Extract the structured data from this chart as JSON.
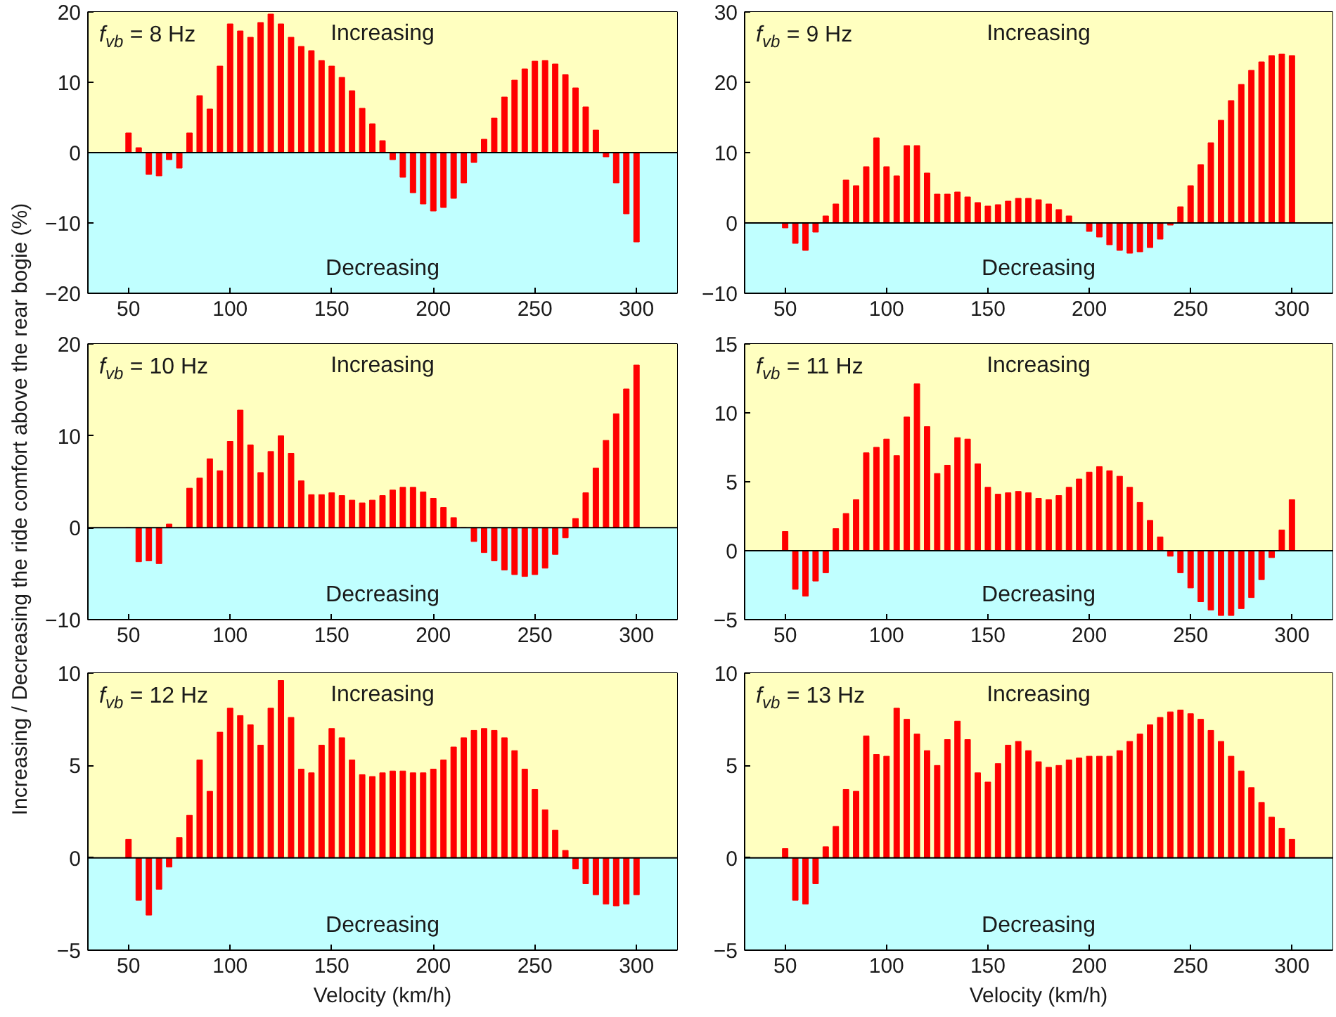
{
  "chart_data": [
    {
      "type": "bar",
      "x": [
        50,
        55,
        60,
        65,
        70,
        75,
        80,
        85,
        90,
        95,
        100,
        105,
        110,
        115,
        120,
        125,
        130,
        135,
        140,
        145,
        150,
        155,
        160,
        165,
        170,
        175,
        180,
        185,
        190,
        195,
        200,
        205,
        210,
        215,
        220,
        225,
        230,
        235,
        240,
        245,
        250,
        255,
        260,
        265,
        270,
        275,
        280,
        285,
        290,
        295,
        300
      ],
      "values": [
        2.8,
        0.7,
        -3.1,
        -3.3,
        -1.0,
        -2.2,
        2.8,
        8.1,
        6.2,
        12.3,
        18.3,
        17.3,
        16.4,
        18.5,
        19.7,
        18.3,
        16.4,
        15.1,
        14.5,
        13.1,
        12.3,
        10.7,
        8.8,
        6.3,
        4.1,
        1.7,
        -1.0,
        -3.5,
        -5.7,
        -7.3,
        -8.3,
        -7.8,
        -6.5,
        -4.3,
        -1.4,
        1.9,
        4.9,
        7.9,
        10.3,
        11.9,
        13.0,
        13.1,
        12.6,
        11.1,
        9.2,
        6.5,
        3.2,
        -0.6,
        -4.3,
        -8.7,
        -12.7
      ],
      "color": "#ff0000",
      "xlim": [
        30,
        320
      ],
      "xticks": [
        50,
        100,
        150,
        200,
        250,
        300
      ],
      "ylim": [
        -20,
        20
      ],
      "yticks": [
        -20,
        -10,
        0,
        10,
        20
      ],
      "bands": [
        {
          "axis": "y",
          "from": 0,
          "to": 20,
          "label": "Increasing",
          "color": "#ffffc0"
        },
        {
          "axis": "y",
          "from": -20,
          "to": 0,
          "label": "Decreasing",
          "color": "#c0ffff"
        }
      ],
      "annotations": [
        "f$_{vb}$ = 8 Hz"
      ]
    },
    {
      "type": "bar",
      "x": [
        50,
        55,
        60,
        65,
        70,
        75,
        80,
        85,
        90,
        95,
        100,
        105,
        110,
        115,
        120,
        125,
        130,
        135,
        140,
        145,
        150,
        155,
        160,
        165,
        170,
        175,
        180,
        185,
        190,
        195,
        200,
        205,
        210,
        215,
        220,
        225,
        230,
        235,
        240,
        245,
        250,
        255,
        260,
        265,
        270,
        275,
        280,
        285,
        290,
        295,
        300
      ],
      "values": [
        -0.7,
        -2.9,
        -3.9,
        -1.3,
        1.0,
        2.7,
        6.1,
        5.3,
        8.0,
        12.1,
        8.0,
        6.7,
        11.0,
        11.0,
        7.1,
        4.1,
        4.1,
        4.4,
        3.7,
        2.9,
        2.4,
        2.6,
        3.1,
        3.5,
        3.5,
        3.3,
        2.7,
        1.9,
        1.0,
        0,
        -1.2,
        -2.0,
        -3.1,
        -3.9,
        -4.3,
        -4.1,
        -3.5,
        -2.3,
        -0.3,
        2.3,
        5.3,
        8.3,
        11.4,
        14.6,
        17.4,
        19.7,
        21.7,
        22.9,
        23.8,
        24.0,
        23.8
      ],
      "color": "#ff0000",
      "xlim": [
        30,
        320
      ],
      "xticks": [
        50,
        100,
        150,
        200,
        250,
        300
      ],
      "ylim": [
        -10,
        30
      ],
      "yticks": [
        -10,
        0,
        10,
        20,
        30
      ],
      "bands": [
        {
          "axis": "y",
          "from": 0,
          "to": 30,
          "label": "Increasing",
          "color": "#ffffc0"
        },
        {
          "axis": "y",
          "from": -10,
          "to": 0,
          "label": "Decreasing",
          "color": "#c0ffff"
        }
      ],
      "annotations": [
        "f$_{vb}$ = 9 Hz"
      ]
    },
    {
      "type": "bar",
      "x": [
        50,
        55,
        60,
        65,
        70,
        75,
        80,
        85,
        90,
        95,
        100,
        105,
        110,
        115,
        120,
        125,
        130,
        135,
        140,
        145,
        150,
        155,
        160,
        165,
        170,
        175,
        180,
        185,
        190,
        195,
        200,
        205,
        210,
        215,
        220,
        225,
        230,
        235,
        240,
        245,
        250,
        255,
        260,
        265,
        270,
        275,
        280,
        285,
        290,
        295,
        300
      ],
      "values": [
        0,
        -3.7,
        -3.6,
        -3.9,
        0.4,
        0,
        4.3,
        5.4,
        7.5,
        6.2,
        9.4,
        12.8,
        9.0,
        6.0,
        8.3,
        10.0,
        8.1,
        5.1,
        3.6,
        3.6,
        3.8,
        3.5,
        3.0,
        2.7,
        3.0,
        3.5,
        4.1,
        4.4,
        4.4,
        3.9,
        3.2,
        2.2,
        1.1,
        0,
        -1.5,
        -2.7,
        -3.6,
        -4.6,
        -5.1,
        -5.3,
        -5.1,
        -4.4,
        -2.9,
        -1.1,
        1.0,
        3.8,
        6.5,
        9.5,
        12.4,
        15.1,
        17.7
      ],
      "color": "#ff0000",
      "xlim": [
        30,
        320
      ],
      "xticks": [
        50,
        100,
        150,
        200,
        250,
        300
      ],
      "ylim": [
        -10,
        20
      ],
      "yticks": [
        -10,
        0,
        10,
        20
      ],
      "bands": [
        {
          "axis": "y",
          "from": 0,
          "to": 20,
          "label": "Increasing",
          "color": "#ffffc0"
        },
        {
          "axis": "y",
          "from": -10,
          "to": 0,
          "label": "Decreasing",
          "color": "#c0ffff"
        }
      ],
      "annotations": [
        "f$_{vb}$ = 10 Hz"
      ],
      "ylabel": "Increasing / Decreasing the ride comfort above the rear bogie (%)"
    },
    {
      "type": "bar",
      "x": [
        50,
        55,
        60,
        65,
        70,
        75,
        80,
        85,
        90,
        95,
        100,
        105,
        110,
        115,
        120,
        125,
        130,
        135,
        140,
        145,
        150,
        155,
        160,
        165,
        170,
        175,
        180,
        185,
        190,
        195,
        200,
        205,
        210,
        215,
        220,
        225,
        230,
        235,
        240,
        245,
        250,
        255,
        260,
        265,
        270,
        275,
        280,
        285,
        290,
        295,
        300
      ],
      "values": [
        1.4,
        -2.8,
        -3.3,
        -2.2,
        -1.6,
        1.6,
        2.7,
        3.7,
        7.1,
        7.5,
        8.1,
        6.9,
        9.7,
        12.1,
        9.0,
        5.6,
        6.2,
        8.2,
        8.1,
        6.3,
        4.6,
        4.1,
        4.2,
        4.3,
        4.2,
        3.8,
        3.7,
        4.0,
        4.6,
        5.2,
        5.7,
        6.1,
        5.8,
        5.4,
        4.6,
        3.5,
        2.2,
        1.0,
        -0.4,
        -1.6,
        -2.7,
        -3.7,
        -4.3,
        -4.7,
        -4.7,
        -4.2,
        -3.4,
        -2.1,
        -0.5,
        1.5,
        3.7
      ],
      "color": "#ff0000",
      "xlim": [
        30,
        320
      ],
      "xticks": [
        50,
        100,
        150,
        200,
        250,
        300
      ],
      "ylim": [
        -5,
        15
      ],
      "yticks": [
        -5,
        0,
        5,
        10,
        15
      ],
      "bands": [
        {
          "axis": "y",
          "from": 0,
          "to": 15,
          "label": "Increasing",
          "color": "#ffffc0"
        },
        {
          "axis": "y",
          "from": -5,
          "to": 0,
          "label": "Decreasing",
          "color": "#c0ffff"
        }
      ],
      "annotations": [
        "f$_{vb}$ = 11 Hz"
      ]
    },
    {
      "type": "bar",
      "x": [
        50,
        55,
        60,
        65,
        70,
        75,
        80,
        85,
        90,
        95,
        100,
        105,
        110,
        115,
        120,
        125,
        130,
        135,
        140,
        145,
        150,
        155,
        160,
        165,
        170,
        175,
        180,
        185,
        190,
        195,
        200,
        205,
        210,
        215,
        220,
        225,
        230,
        235,
        240,
        245,
        250,
        255,
        260,
        265,
        270,
        275,
        280,
        285,
        290,
        295,
        300
      ],
      "values": [
        1.0,
        -2.3,
        -3.1,
        -1.7,
        -0.5,
        1.1,
        2.3,
        5.3,
        3.6,
        6.8,
        8.1,
        7.7,
        7.2,
        6.1,
        8.1,
        9.6,
        7.6,
        4.8,
        4.6,
        6.1,
        7.0,
        6.5,
        5.3,
        4.5,
        4.4,
        4.6,
        4.7,
        4.7,
        4.6,
        4.6,
        4.8,
        5.3,
        6.0,
        6.5,
        6.9,
        7.0,
        6.9,
        6.5,
        5.8,
        4.8,
        3.7,
        2.6,
        1.5,
        0.4,
        -0.6,
        -1.4,
        -2.0,
        -2.5,
        -2.6,
        -2.5,
        -2.0
      ],
      "color": "#ff0000",
      "xlim": [
        30,
        320
      ],
      "xticks": [
        50,
        100,
        150,
        200,
        250,
        300
      ],
      "ylim": [
        -5,
        10
      ],
      "yticks": [
        -5,
        0,
        5,
        10
      ],
      "bands": [
        {
          "axis": "y",
          "from": 0,
          "to": 10,
          "label": "Increasing",
          "color": "#ffffc0"
        },
        {
          "axis": "y",
          "from": -5,
          "to": 0,
          "label": "Decreasing",
          "color": "#c0ffff"
        }
      ],
      "annotations": [
        "f$_{vb}$ = 12 Hz"
      ],
      "xlabel": "Velocity (km/h)"
    },
    {
      "type": "bar",
      "x": [
        50,
        55,
        60,
        65,
        70,
        75,
        80,
        85,
        90,
        95,
        100,
        105,
        110,
        115,
        120,
        125,
        130,
        135,
        140,
        145,
        150,
        155,
        160,
        165,
        170,
        175,
        180,
        185,
        190,
        195,
        200,
        205,
        210,
        215,
        220,
        225,
        230,
        235,
        240,
        245,
        250,
        255,
        260,
        265,
        270,
        275,
        280,
        285,
        290,
        295,
        300
      ],
      "values": [
        0.5,
        -2.3,
        -2.5,
        -1.4,
        0.6,
        1.7,
        3.7,
        3.6,
        6.6,
        5.6,
        5.5,
        8.1,
        7.5,
        6.7,
        5.8,
        5.0,
        6.4,
        7.4,
        6.4,
        4.6,
        4.1,
        5.1,
        6.1,
        6.3,
        5.8,
        5.2,
        4.9,
        5.0,
        5.3,
        5.4,
        5.5,
        5.5,
        5.5,
        5.8,
        6.3,
        6.7,
        7.2,
        7.6,
        7.9,
        8.0,
        7.8,
        7.5,
        6.9,
        6.3,
        5.5,
        4.7,
        3.8,
        3.0,
        2.2,
        1.6,
        1.0
      ],
      "color": "#ff0000",
      "xlim": [
        30,
        320
      ],
      "xticks": [
        50,
        100,
        150,
        200,
        250,
        300
      ],
      "ylim": [
        -5,
        10
      ],
      "yticks": [
        -5,
        0,
        5,
        10
      ],
      "bands": [
        {
          "axis": "y",
          "from": 0,
          "to": 10,
          "label": "Increasing",
          "color": "#ffffc0"
        },
        {
          "axis": "y",
          "from": -5,
          "to": 0,
          "label": "Decreasing",
          "color": "#c0ffff"
        }
      ],
      "annotations": [
        "f$_{vb}$ = 13 Hz"
      ],
      "xlabel": "Velocity (km/h)"
    }
  ]
}
